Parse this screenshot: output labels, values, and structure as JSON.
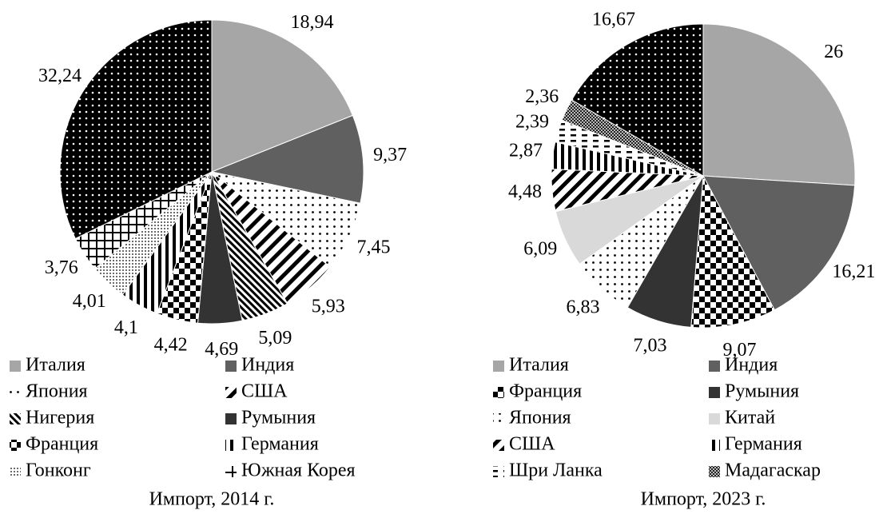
{
  "chart_data": [
    {
      "type": "pie",
      "title": "Импорт, 2014 г.",
      "categories": [
        "Италия",
        "Индия",
        "Япония",
        "США",
        "Нигерия",
        "Румыния",
        "Франция",
        "Германия",
        "Гонконг",
        "Южная Корея",
        null
      ],
      "values": [
        18.94,
        9.37,
        7.45,
        5.93,
        5.09,
        4.69,
        4.42,
        4.1,
        4.01,
        3.76,
        32.24
      ],
      "value_labels": [
        "18,94",
        "9,37",
        "7,45",
        "5,93",
        "5,09",
        "4,69",
        "4,42",
        "4,1",
        "4,01",
        "3,76",
        "32,24"
      ],
      "fills": [
        "#a6a6a6",
        "#606060",
        "dots",
        "diag",
        "hatch",
        "#333333",
        "checker",
        "vertical",
        "finedots",
        "grid",
        "blackdots"
      ]
    },
    {
      "type": "pie",
      "title": "Импорт, 2023 г.",
      "categories": [
        "Италия",
        "Индия",
        "Франция",
        "Румыния",
        "Япония",
        "Китай",
        "США",
        "Германия",
        "Шри Ланка",
        "Мадагаскар",
        null
      ],
      "values": [
        26,
        16.21,
        9.07,
        7.03,
        6.83,
        6.09,
        4.48,
        2.87,
        2.39,
        2.36,
        16.67
      ],
      "value_labels": [
        "26",
        "16,21",
        "9,07",
        "7,03",
        "6,83",
        "6,09",
        "4,48",
        "2,87",
        "2,39",
        "2,36",
        "16,67"
      ],
      "fills": [
        "#a6a6a6",
        "#606060",
        "checker",
        "#333333",
        "dots",
        "#d9d9d9",
        "diag",
        "vertical",
        "dashes",
        "smallcheck",
        "blackdots"
      ]
    }
  ]
}
